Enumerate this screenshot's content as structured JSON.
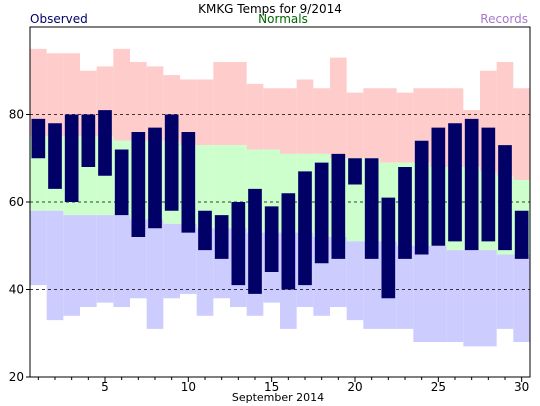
{
  "chart_data": {
    "type": "bar",
    "title": "KMKG Temps for 9/2014",
    "xlabel": "September 2014",
    "ylabel": "",
    "xlim": [
      0.5,
      30.5
    ],
    "ylim": [
      20,
      100
    ],
    "yticks": [
      20,
      40,
      60,
      80
    ],
    "xticks": [
      5,
      10,
      15,
      20,
      25,
      30
    ],
    "grid_lines": [
      40,
      60,
      80
    ],
    "legend": [
      {
        "label": "Observed",
        "color": "#000066",
        "position": "top-left"
      },
      {
        "label": "Normals",
        "color": "#006600",
        "position": "top-center"
      },
      {
        "label": "Records",
        "color": "#aa77cc",
        "position": "top-right"
      }
    ],
    "colors": {
      "record_high": "#ffcccc",
      "normal_band": "#ccffcc",
      "record_low": "#ccccff",
      "observed": "#000066",
      "grid": "#000000",
      "axis": "#000000"
    },
    "days": [
      1,
      2,
      3,
      4,
      5,
      6,
      7,
      8,
      9,
      10,
      11,
      12,
      13,
      14,
      15,
      16,
      17,
      18,
      19,
      20,
      21,
      22,
      23,
      24,
      25,
      26,
      27,
      28,
      29,
      30
    ],
    "series": [
      {
        "name": "Records",
        "role": "record_high",
        "values": [
          95,
          94,
          94,
          90,
          91,
          95,
          92,
          91,
          89,
          88,
          88,
          92,
          92,
          87,
          86,
          86,
          88,
          86,
          93,
          85,
          86,
          86,
          85,
          86,
          86,
          86,
          81,
          90,
          92,
          86
        ]
      },
      {
        "name": "Normals",
        "role": "normal_high",
        "values": [
          75,
          75,
          75,
          75,
          75,
          74,
          74,
          74,
          74,
          73,
          73,
          73,
          73,
          72,
          72,
          71,
          71,
          71,
          70,
          70,
          70,
          69,
          69,
          69,
          68,
          68,
          68,
          67,
          66,
          65
        ]
      },
      {
        "name": "Normals",
        "role": "normal_low",
        "values": [
          58,
          58,
          57,
          57,
          57,
          57,
          56,
          56,
          55,
          55,
          54,
          54,
          54,
          53,
          53,
          53,
          53,
          52,
          52,
          51,
          51,
          51,
          50,
          50,
          50,
          49,
          49,
          49,
          48,
          48
        ]
      },
      {
        "name": "Records",
        "role": "record_low",
        "values": [
          41,
          33,
          34,
          36,
          37,
          36,
          38,
          31,
          38,
          39,
          34,
          38,
          36,
          34,
          37,
          31,
          36,
          34,
          36,
          33,
          31,
          31,
          31,
          28,
          28,
          28,
          27,
          27,
          31,
          28
        ]
      },
      {
        "name": "Observed",
        "role": "observed_high",
        "values": [
          79,
          78,
          80,
          80,
          81,
          72,
          76,
          77,
          80,
          76,
          58,
          57,
          60,
          63,
          59,
          62,
          67,
          69,
          71,
          70,
          70,
          61,
          68,
          74,
          77,
          78,
          79,
          77,
          73,
          58
        ]
      },
      {
        "name": "Observed",
        "role": "observed_low",
        "values": [
          70,
          63,
          60,
          68,
          66,
          57,
          52,
          54,
          58,
          53,
          49,
          47,
          41,
          39,
          44,
          40,
          41,
          46,
          47,
          64,
          47,
          38,
          47,
          48,
          50,
          51,
          49,
          51,
          49,
          47
        ]
      }
    ]
  }
}
